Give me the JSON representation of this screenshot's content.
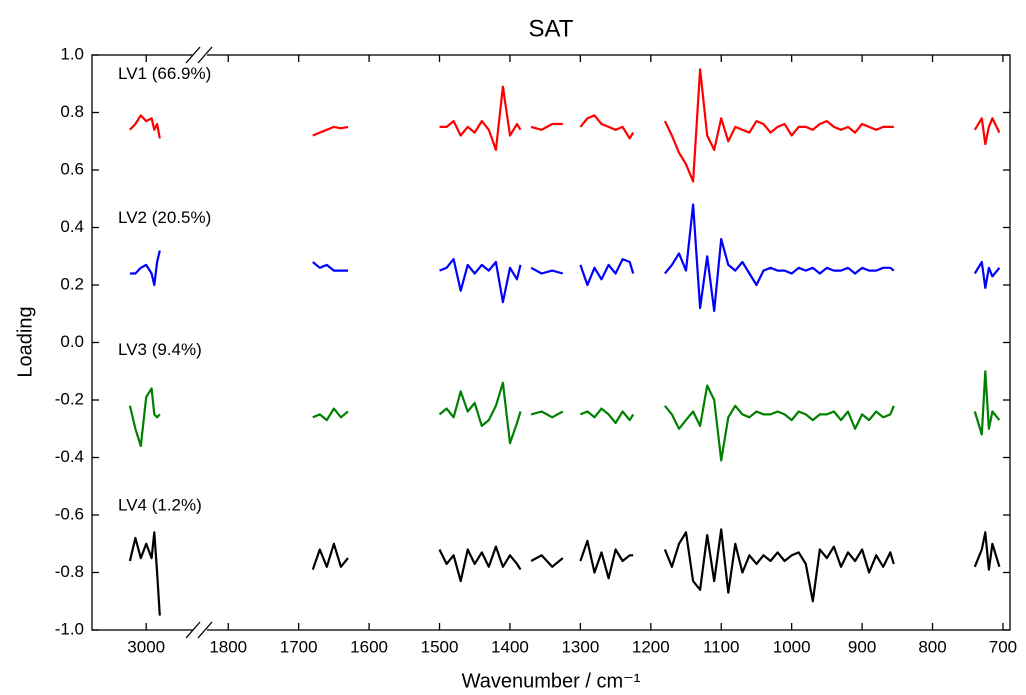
{
  "chart_data": {
    "type": "line",
    "title": "SAT",
    "x_label": "Wavenumber / cm⁻¹",
    "y_label": "Loading",
    "ylim": [
      -1,
      1
    ],
    "yticks": [
      {
        "value": -1,
        "label": "-1.0"
      },
      -0.8,
      -0.6,
      -0.4,
      -0.2,
      {
        "value": 0,
        "label": "0.0"
      },
      0.2,
      0.4,
      0.6,
      0.8,
      {
        "value": 1,
        "label": "1.0"
      }
    ],
    "x_segments": [
      {
        "xlim": [
          3100,
          2910
        ],
        "xticks": [
          3000
        ]
      },
      {
        "xlim": [
          1833,
          690
        ],
        "xticks": [
          1800,
          1700,
          1600,
          1500,
          1400,
          1300,
          1200,
          1100,
          1000,
          900,
          800,
          700
        ]
      }
    ],
    "x": [
      3030,
      3020,
      3010,
      3000,
      2990,
      2985,
      2980,
      2975,
      1750,
      1680,
      1670,
      1660,
      1650,
      1640,
      1630,
      1560,
      1500,
      1490,
      1480,
      1470,
      1460,
      1450,
      1440,
      1430,
      1420,
      1410,
      1400,
      1390,
      1385,
      1378,
      1370,
      1355,
      1340,
      1325,
      1312,
      1300,
      1290,
      1280,
      1270,
      1260,
      1250,
      1240,
      1230,
      1225,
      1200,
      1180,
      1170,
      1160,
      1150,
      1140,
      1130,
      1120,
      1110,
      1100,
      1090,
      1080,
      1070,
      1060,
      1050,
      1040,
      1030,
      1020,
      1010,
      1000,
      990,
      980,
      970,
      960,
      950,
      940,
      930,
      920,
      910,
      900,
      890,
      880,
      870,
      860,
      855,
      800,
      740,
      730,
      725,
      720,
      715,
      705
    ],
    "series": [
      {
        "name": "LV1 (66.9%)",
        "color": "#ff0000",
        "values": [
          0.74,
          0.76,
          0.79,
          0.77,
          0.78,
          0.74,
          0.76,
          0.71,
          null,
          0.72,
          0.73,
          0.74,
          0.75,
          0.745,
          0.75,
          null,
          0.75,
          0.75,
          0.77,
          0.72,
          0.75,
          0.73,
          0.77,
          0.74,
          0.67,
          0.89,
          0.72,
          0.76,
          0.74,
          null,
          0.75,
          0.74,
          0.76,
          0.76,
          null,
          0.75,
          0.78,
          0.79,
          0.76,
          0.75,
          0.74,
          0.75,
          0.71,
          0.73,
          null,
          0.77,
          0.72,
          0.66,
          0.62,
          0.56,
          0.95,
          0.72,
          0.67,
          0.78,
          0.7,
          0.75,
          0.74,
          0.73,
          0.77,
          0.76,
          0.73,
          0.75,
          0.76,
          0.72,
          0.75,
          0.75,
          0.74,
          0.76,
          0.77,
          0.75,
          0.74,
          0.75,
          0.73,
          0.76,
          0.75,
          0.74,
          0.75,
          0.75,
          0.75,
          null,
          0.74,
          0.78,
          0.69,
          0.75,
          0.78,
          0.73
        ]
      },
      {
        "name": "LV2 (20.5%)",
        "color": "#0000ff",
        "values": [
          0.24,
          0.24,
          0.26,
          0.27,
          0.24,
          0.2,
          0.28,
          0.32,
          null,
          0.28,
          0.26,
          0.27,
          0.25,
          0.25,
          0.25,
          null,
          0.25,
          0.26,
          0.29,
          0.18,
          0.27,
          0.24,
          0.27,
          0.25,
          0.28,
          0.14,
          0.26,
          0.22,
          0.27,
          null,
          0.26,
          0.24,
          0.25,
          0.24,
          null,
          0.27,
          0.2,
          0.26,
          0.22,
          0.27,
          0.24,
          0.29,
          0.28,
          0.24,
          null,
          0.24,
          0.27,
          0.31,
          0.25,
          0.48,
          0.12,
          0.3,
          0.11,
          0.36,
          0.27,
          0.25,
          0.28,
          0.24,
          0.2,
          0.25,
          0.26,
          0.25,
          0.25,
          0.24,
          0.26,
          0.25,
          0.26,
          0.24,
          0.26,
          0.25,
          0.25,
          0.26,
          0.24,
          0.26,
          0.25,
          0.25,
          0.26,
          0.26,
          0.25,
          null,
          0.24,
          0.28,
          0.19,
          0.26,
          0.23,
          0.26
        ]
      },
      {
        "name": "LV3 (9.4%)",
        "color": "#008000",
        "values": [
          -0.22,
          -0.3,
          -0.36,
          -0.19,
          -0.16,
          -0.25,
          -0.26,
          -0.25,
          null,
          -0.26,
          -0.25,
          -0.27,
          -0.23,
          -0.26,
          -0.24,
          null,
          -0.25,
          -0.23,
          -0.26,
          -0.17,
          -0.24,
          -0.21,
          -0.29,
          -0.27,
          -0.22,
          -0.14,
          -0.35,
          -0.28,
          -0.24,
          null,
          -0.25,
          -0.24,
          -0.26,
          -0.24,
          null,
          -0.25,
          -0.24,
          -0.26,
          -0.23,
          -0.25,
          -0.28,
          -0.24,
          -0.27,
          -0.25,
          null,
          -0.22,
          -0.25,
          -0.3,
          -0.27,
          -0.24,
          -0.29,
          -0.15,
          -0.2,
          -0.41,
          -0.26,
          -0.22,
          -0.25,
          -0.26,
          -0.24,
          -0.25,
          -0.25,
          -0.24,
          -0.25,
          -0.27,
          -0.24,
          -0.25,
          -0.27,
          -0.25,
          -0.25,
          -0.24,
          -0.27,
          -0.24,
          -0.3,
          -0.25,
          -0.27,
          -0.24,
          -0.26,
          -0.25,
          -0.22,
          null,
          -0.24,
          -0.32,
          -0.1,
          -0.3,
          -0.24,
          -0.27
        ]
      },
      {
        "name": "LV4 (1.2%)",
        "color": "#000000",
        "values": [
          -0.76,
          -0.68,
          -0.75,
          -0.7,
          -0.75,
          -0.66,
          -0.8,
          -0.95,
          null,
          -0.79,
          -0.72,
          -0.78,
          -0.7,
          -0.78,
          -0.75,
          null,
          -0.72,
          -0.77,
          -0.74,
          -0.83,
          -0.72,
          -0.77,
          -0.73,
          -0.78,
          -0.71,
          -0.78,
          -0.74,
          -0.77,
          -0.79,
          null,
          -0.76,
          -0.74,
          -0.78,
          -0.75,
          null,
          -0.76,
          -0.69,
          -0.8,
          -0.73,
          -0.82,
          -0.72,
          -0.76,
          -0.74,
          -0.74,
          null,
          -0.72,
          -0.78,
          -0.7,
          -0.66,
          -0.83,
          -0.86,
          -0.67,
          -0.83,
          -0.65,
          -0.87,
          -0.7,
          -0.8,
          -0.74,
          -0.77,
          -0.74,
          -0.76,
          -0.73,
          -0.76,
          -0.74,
          -0.73,
          -0.77,
          -0.9,
          -0.72,
          -0.75,
          -0.71,
          -0.78,
          -0.73,
          -0.76,
          -0.72,
          -0.8,
          -0.74,
          -0.78,
          -0.73,
          -0.77,
          null,
          -0.78,
          -0.72,
          -0.66,
          -0.79,
          -0.7,
          -0.78
        ]
      }
    ]
  }
}
